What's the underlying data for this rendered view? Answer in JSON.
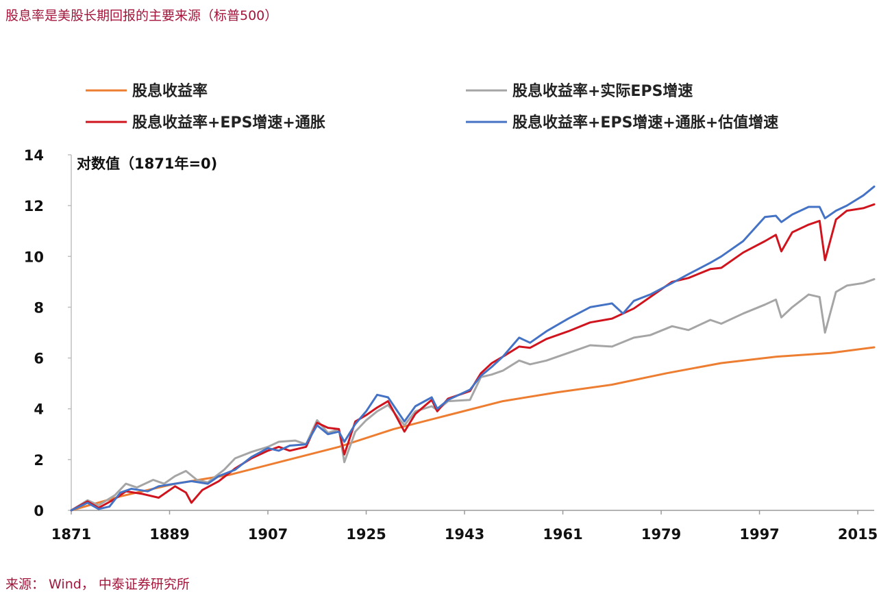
{
  "title": "股息率是美股长期回报的主要来源（标普500）",
  "source": "来源： Wind， 中泰证券研究所",
  "chart_data": {
    "type": "line",
    "ylabel": "对数值（1871年=0)",
    "ylim": [
      0,
      14
    ],
    "yticks": [
      0,
      2,
      4,
      6,
      8,
      10,
      12,
      14
    ],
    "xlim": [
      1871,
      2018
    ],
    "xticks": [
      1871,
      1889,
      1907,
      1925,
      1943,
      1961,
      1979,
      1997,
      2015
    ],
    "grid": false,
    "legend_position": "top",
    "series": [
      {
        "name": "股息收益率",
        "color": "#ed7d31",
        "points": [
          [
            1871,
            0
          ],
          [
            1880,
            0.55
          ],
          [
            1890,
            1.05
          ],
          [
            1900,
            1.4
          ],
          [
            1910,
            1.95
          ],
          [
            1920,
            2.5
          ],
          [
            1930,
            3.2
          ],
          [
            1940,
            3.75
          ],
          [
            1950,
            4.3
          ],
          [
            1960,
            4.65
          ],
          [
            1970,
            4.95
          ],
          [
            1980,
            5.4
          ],
          [
            1990,
            5.8
          ],
          [
            2000,
            6.05
          ],
          [
            2010,
            6.2
          ],
          [
            2018,
            6.42
          ]
        ]
      },
      {
        "name": "股息收益率+实际EPS增速",
        "color": "#a5a5a5",
        "points": [
          [
            1871,
            0
          ],
          [
            1874,
            0.4
          ],
          [
            1876,
            0.2
          ],
          [
            1879,
            0.6
          ],
          [
            1881,
            1.05
          ],
          [
            1883,
            0.9
          ],
          [
            1886,
            1.2
          ],
          [
            1888,
            1.05
          ],
          [
            1890,
            1.35
          ],
          [
            1892,
            1.55
          ],
          [
            1894,
            1.2
          ],
          [
            1896,
            1.1
          ],
          [
            1899,
            1.6
          ],
          [
            1901,
            2.05
          ],
          [
            1904,
            2.3
          ],
          [
            1907,
            2.5
          ],
          [
            1909,
            2.7
          ],
          [
            1912,
            2.75
          ],
          [
            1914,
            2.6
          ],
          [
            1916,
            3.55
          ],
          [
            1918,
            3.05
          ],
          [
            1920,
            3.2
          ],
          [
            1921,
            1.9
          ],
          [
            1923,
            3.1
          ],
          [
            1925,
            3.55
          ],
          [
            1927,
            3.9
          ],
          [
            1929,
            4.15
          ],
          [
            1932,
            3.35
          ],
          [
            1934,
            3.9
          ],
          [
            1937,
            4.1
          ],
          [
            1938,
            3.95
          ],
          [
            1940,
            4.3
          ],
          [
            1944,
            4.35
          ],
          [
            1946,
            5.25
          ],
          [
            1948,
            5.35
          ],
          [
            1950,
            5.5
          ],
          [
            1953,
            5.9
          ],
          [
            1955,
            5.75
          ],
          [
            1958,
            5.9
          ],
          [
            1962,
            6.2
          ],
          [
            1966,
            6.5
          ],
          [
            1970,
            6.45
          ],
          [
            1974,
            6.8
          ],
          [
            1977,
            6.9
          ],
          [
            1981,
            7.25
          ],
          [
            1984,
            7.1
          ],
          [
            1988,
            7.5
          ],
          [
            1990,
            7.35
          ],
          [
            1994,
            7.75
          ],
          [
            1998,
            8.1
          ],
          [
            2000,
            8.3
          ],
          [
            2001,
            7.6
          ],
          [
            2003,
            8.0
          ],
          [
            2006,
            8.5
          ],
          [
            2008,
            8.4
          ],
          [
            2009,
            7.0
          ],
          [
            2011,
            8.6
          ],
          [
            2013,
            8.85
          ],
          [
            2016,
            8.95
          ],
          [
            2018,
            9.1
          ]
        ]
      },
      {
        "name": "股息收益率+EPS增速+通胀",
        "color": "#d0141e",
        "points": [
          [
            1871,
            0
          ],
          [
            1874,
            0.35
          ],
          [
            1876,
            0.1
          ],
          [
            1879,
            0.45
          ],
          [
            1881,
            0.75
          ],
          [
            1884,
            0.65
          ],
          [
            1887,
            0.5
          ],
          [
            1890,
            0.95
          ],
          [
            1892,
            0.7
          ],
          [
            1893,
            0.3
          ],
          [
            1895,
            0.8
          ],
          [
            1898,
            1.15
          ],
          [
            1901,
            1.65
          ],
          [
            1904,
            2.05
          ],
          [
            1907,
            2.35
          ],
          [
            1909,
            2.5
          ],
          [
            1911,
            2.35
          ],
          [
            1914,
            2.5
          ],
          [
            1916,
            3.45
          ],
          [
            1918,
            3.25
          ],
          [
            1920,
            3.2
          ],
          [
            1921,
            2.2
          ],
          [
            1923,
            3.5
          ],
          [
            1925,
            3.75
          ],
          [
            1927,
            4.05
          ],
          [
            1929,
            4.3
          ],
          [
            1932,
            3.1
          ],
          [
            1934,
            3.8
          ],
          [
            1937,
            4.35
          ],
          [
            1938,
            3.9
          ],
          [
            1940,
            4.4
          ],
          [
            1944,
            4.7
          ],
          [
            1946,
            5.4
          ],
          [
            1948,
            5.8
          ],
          [
            1950,
            6.05
          ],
          [
            1953,
            6.45
          ],
          [
            1955,
            6.4
          ],
          [
            1958,
            6.75
          ],
          [
            1962,
            7.05
          ],
          [
            1966,
            7.4
          ],
          [
            1970,
            7.55
          ],
          [
            1974,
            7.95
          ],
          [
            1977,
            8.4
          ],
          [
            1981,
            9.0
          ],
          [
            1984,
            9.15
          ],
          [
            1988,
            9.5
          ],
          [
            1990,
            9.55
          ],
          [
            1994,
            10.15
          ],
          [
            1998,
            10.6
          ],
          [
            2000,
            10.85
          ],
          [
            2001,
            10.2
          ],
          [
            2003,
            10.95
          ],
          [
            2006,
            11.25
          ],
          [
            2008,
            11.4
          ],
          [
            2009,
            9.85
          ],
          [
            2011,
            11.45
          ],
          [
            2013,
            11.8
          ],
          [
            2016,
            11.9
          ],
          [
            2018,
            12.05
          ]
        ]
      },
      {
        "name": "股息收益率+EPS增速+通胀+估值增速",
        "color": "#4472c4",
        "points": [
          [
            1871,
            0
          ],
          [
            1874,
            0.3
          ],
          [
            1876,
            0.05
          ],
          [
            1878,
            0.15
          ],
          [
            1880,
            0.7
          ],
          [
            1882,
            0.85
          ],
          [
            1885,
            0.75
          ],
          [
            1887,
            0.95
          ],
          [
            1890,
            1.05
          ],
          [
            1893,
            1.15
          ],
          [
            1896,
            1.05
          ],
          [
            1898,
            1.35
          ],
          [
            1901,
            1.6
          ],
          [
            1904,
            2.1
          ],
          [
            1907,
            2.45
          ],
          [
            1909,
            2.35
          ],
          [
            1911,
            2.55
          ],
          [
            1914,
            2.6
          ],
          [
            1916,
            3.35
          ],
          [
            1918,
            3.0
          ],
          [
            1920,
            3.1
          ],
          [
            1921,
            2.7
          ],
          [
            1923,
            3.4
          ],
          [
            1925,
            3.9
          ],
          [
            1927,
            4.55
          ],
          [
            1929,
            4.45
          ],
          [
            1932,
            3.5
          ],
          [
            1934,
            4.1
          ],
          [
            1937,
            4.45
          ],
          [
            1938,
            4.0
          ],
          [
            1940,
            4.35
          ],
          [
            1944,
            4.75
          ],
          [
            1946,
            5.3
          ],
          [
            1948,
            5.65
          ],
          [
            1950,
            6.05
          ],
          [
            1953,
            6.8
          ],
          [
            1955,
            6.6
          ],
          [
            1958,
            7.05
          ],
          [
            1962,
            7.55
          ],
          [
            1966,
            8.0
          ],
          [
            1970,
            8.15
          ],
          [
            1972,
            7.75
          ],
          [
            1974,
            8.25
          ],
          [
            1977,
            8.5
          ],
          [
            1981,
            8.95
          ],
          [
            1984,
            9.3
          ],
          [
            1988,
            9.75
          ],
          [
            1990,
            10.0
          ],
          [
            1994,
            10.6
          ],
          [
            1998,
            11.55
          ],
          [
            2000,
            11.6
          ],
          [
            2001,
            11.35
          ],
          [
            2003,
            11.65
          ],
          [
            2006,
            11.95
          ],
          [
            2008,
            11.95
          ],
          [
            2009,
            11.5
          ],
          [
            2011,
            11.8
          ],
          [
            2013,
            12.0
          ],
          [
            2016,
            12.4
          ],
          [
            2018,
            12.75
          ]
        ]
      }
    ]
  }
}
